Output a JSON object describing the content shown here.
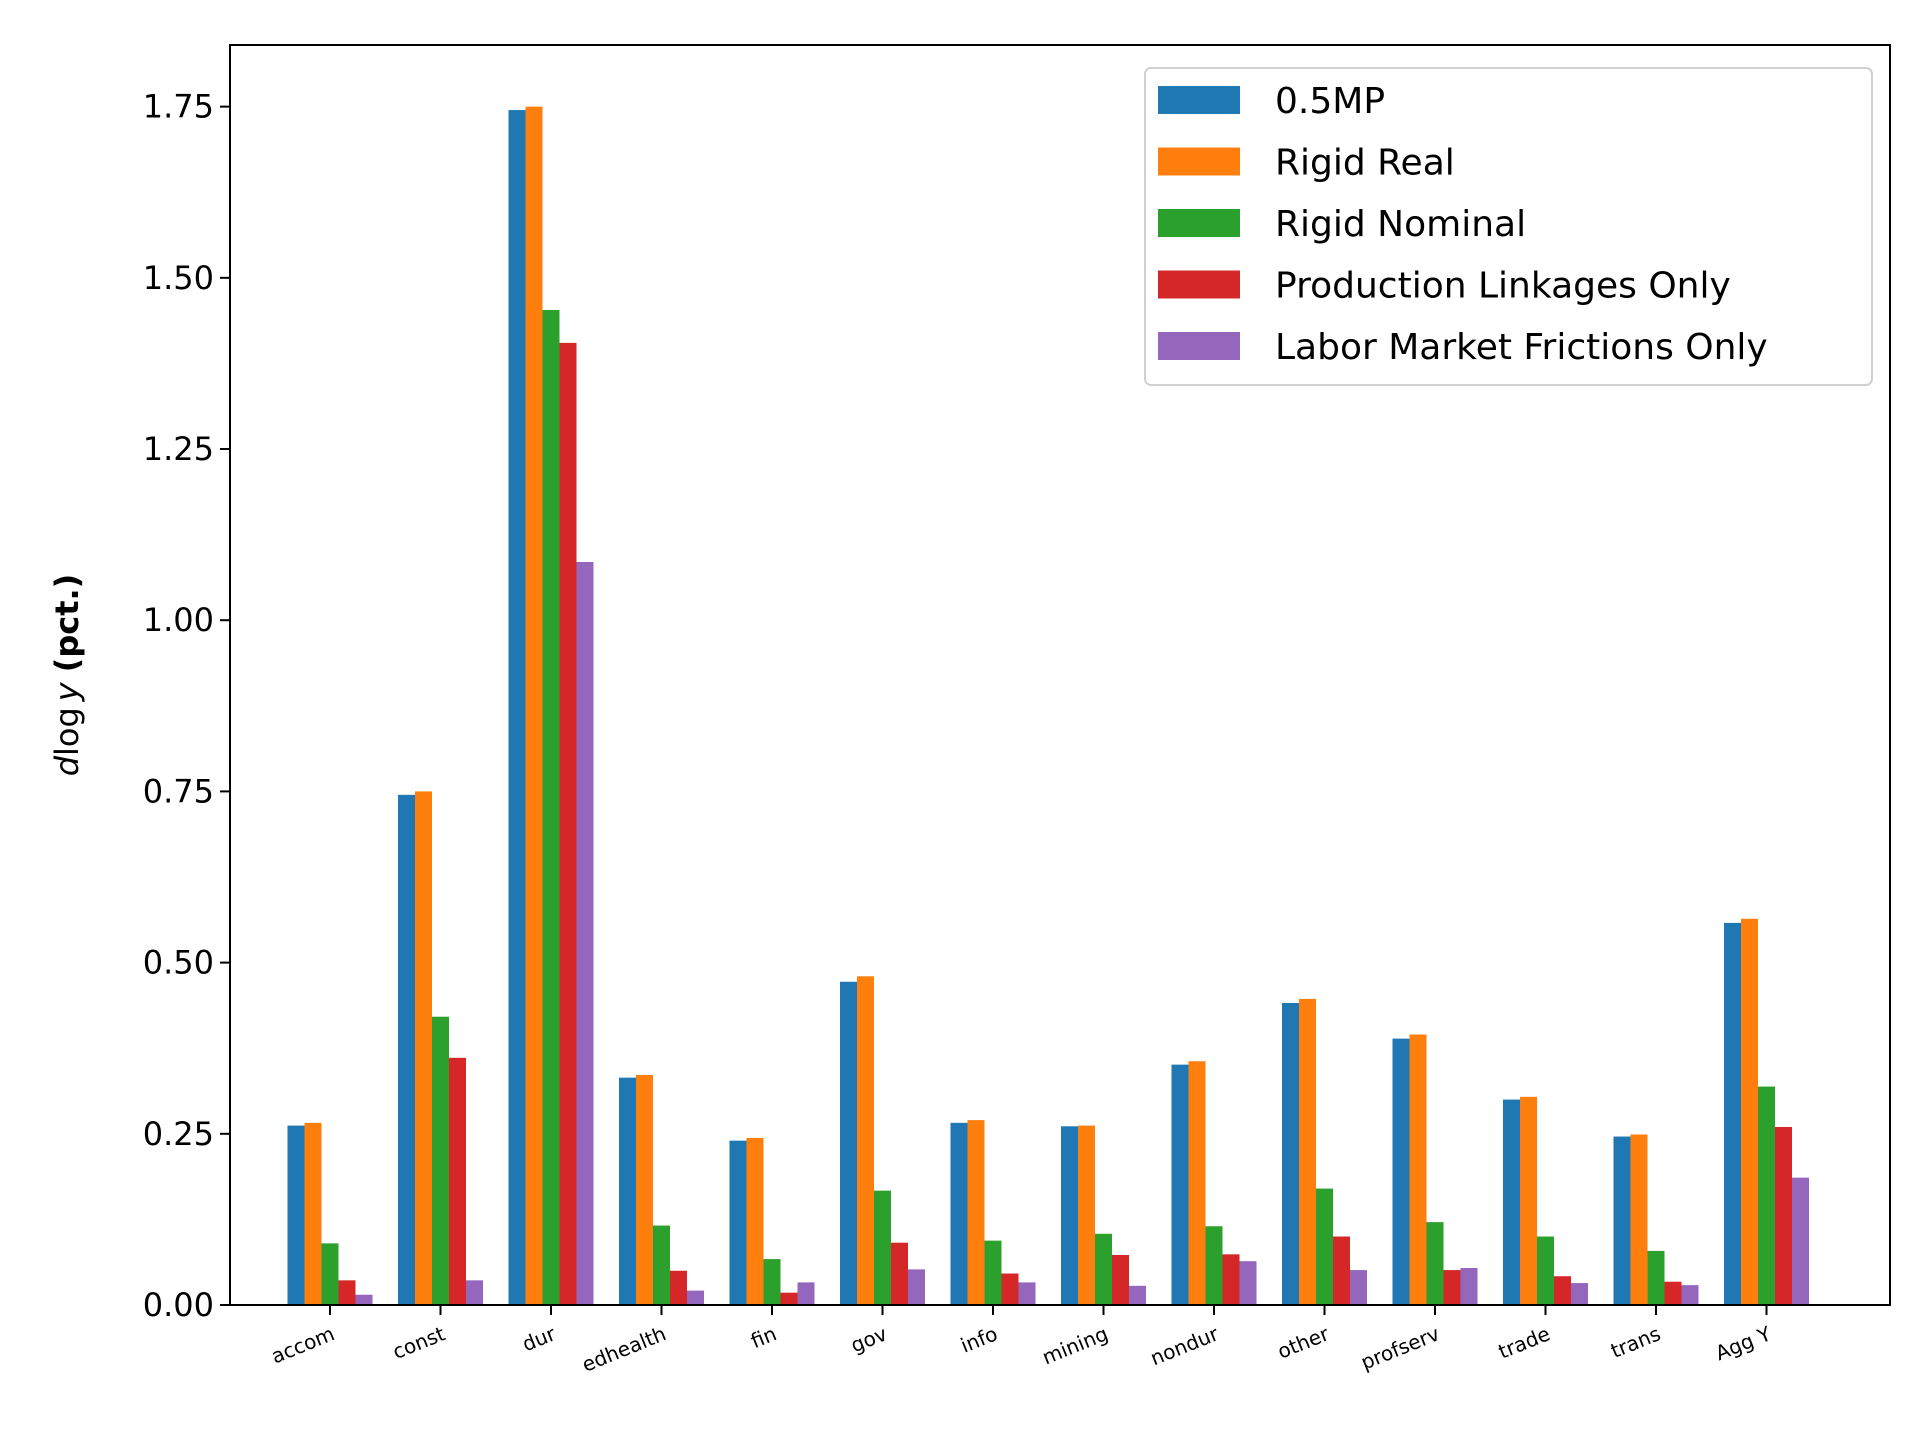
{
  "chart_data": {
    "type": "bar",
    "title": "",
    "xlabel": "",
    "ylabel_prefix": "d",
    "ylabel_log": "log",
    "ylabel_var": "y",
    "ylabel_unit": "(pct.)",
    "ylim": [
      0,
      1.84
    ],
    "yticks": [
      0.0,
      0.25,
      0.5,
      0.75,
      1.0,
      1.25,
      1.5,
      1.75
    ],
    "ytick_labels": [
      "0.00",
      "0.25",
      "0.50",
      "0.75",
      "1.00",
      "1.25",
      "1.50",
      "1.75"
    ],
    "grid": false,
    "legend_position": "top-right",
    "categories": [
      "accom",
      "const",
      "dur",
      "edhealth",
      "fin",
      "gov",
      "info",
      "mining",
      "nondur",
      "other",
      "profserv",
      "trade",
      "trans",
      "Agg Y"
    ],
    "series": [
      {
        "name": "0.5MP",
        "color": "#1f77b4",
        "values": [
          0.262,
          0.745,
          1.745,
          0.332,
          0.24,
          0.472,
          0.266,
          0.261,
          0.351,
          0.441,
          0.389,
          0.3,
          0.246,
          0.558
        ]
      },
      {
        "name": "Rigid Real",
        "color": "#ff7f0e",
        "values": [
          0.266,
          0.75,
          1.75,
          0.336,
          0.244,
          0.48,
          0.27,
          0.262,
          0.356,
          0.447,
          0.395,
          0.304,
          0.249,
          0.564
        ]
      },
      {
        "name": "Rigid Nominal",
        "color": "#2ca02c",
        "values": [
          0.09,
          0.421,
          1.453,
          0.116,
          0.067,
          0.167,
          0.094,
          0.104,
          0.115,
          0.17,
          0.121,
          0.1,
          0.079,
          0.319
        ]
      },
      {
        "name": "Production Linkages Only",
        "color": "#d62728",
        "values": [
          0.036,
          0.361,
          1.405,
          0.05,
          0.018,
          0.091,
          0.046,
          0.073,
          0.074,
          0.1,
          0.051,
          0.042,
          0.034,
          0.26
        ]
      },
      {
        "name": "Labor Market Frictions Only",
        "color": "#9467bd",
        "values": [
          0.015,
          0.036,
          1.085,
          0.021,
          0.033,
          0.052,
          0.033,
          0.028,
          0.064,
          0.051,
          0.054,
          0.032,
          0.029,
          0.186
        ]
      }
    ]
  }
}
